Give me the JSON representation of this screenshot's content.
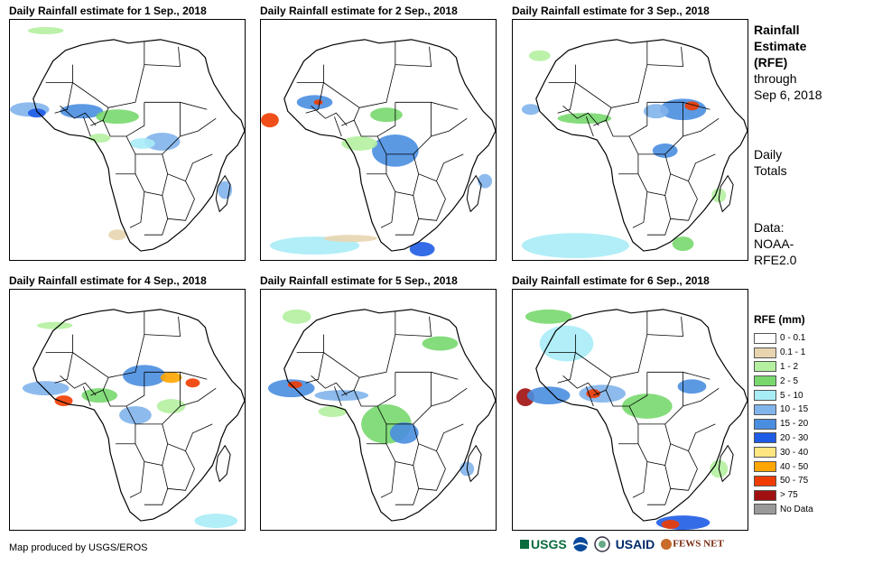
{
  "panels": [
    {
      "title": "Daily Rainfall estimate for 1 Sep., 2018"
    },
    {
      "title": "Daily Rainfall estimate for 2 Sep., 2018"
    },
    {
      "title": "Daily Rainfall estimate for 3 Sep., 2018"
    },
    {
      "title": "Daily Rainfall estimate for 4 Sep., 2018"
    },
    {
      "title": "Daily Rainfall estimate for 5 Sep., 2018"
    },
    {
      "title": "Daily Rainfall estimate for 6 Sep., 2018"
    }
  ],
  "side": {
    "title_line1": "Rainfall",
    "title_line2": "Estimate",
    "title_line3": "(RFE)",
    "through_label": "through",
    "through_date": "Sep 6, 2018",
    "daily_line1": "Daily",
    "daily_line2": "Totals",
    "data_line1": "Data:",
    "data_line2": "NOAA-",
    "data_line3": "RFE2.0"
  },
  "legend": {
    "title": "RFE (mm)",
    "items": [
      {
        "label": "0 - 0.1",
        "color": "#ffffff"
      },
      {
        "label": "0.1 - 1",
        "color": "#e8d5b0"
      },
      {
        "label": "1 - 2",
        "color": "#b4f0a0"
      },
      {
        "label": "2 - 5",
        "color": "#78d86e"
      },
      {
        "label": "5 - 10",
        "color": "#a8ecf6"
      },
      {
        "label": "10 - 15",
        "color": "#82b4ec"
      },
      {
        "label": "15 - 20",
        "color": "#4a8ee0"
      },
      {
        "label": "20 - 30",
        "color": "#1e5ce6"
      },
      {
        "label": "30 - 40",
        "color": "#ffe680"
      },
      {
        "label": "40 - 50",
        "color": "#ffa500"
      },
      {
        "label": "50 - 75",
        "color": "#f03c00"
      },
      {
        "label": "> 75",
        "color": "#a01010"
      },
      {
        "label": "No Data",
        "color": "#999999"
      }
    ]
  },
  "credit": "Map produced by USGS/EROS",
  "logos": {
    "usgs": "USGS",
    "usaid": "USAID",
    "fews": "FEWS NET"
  }
}
